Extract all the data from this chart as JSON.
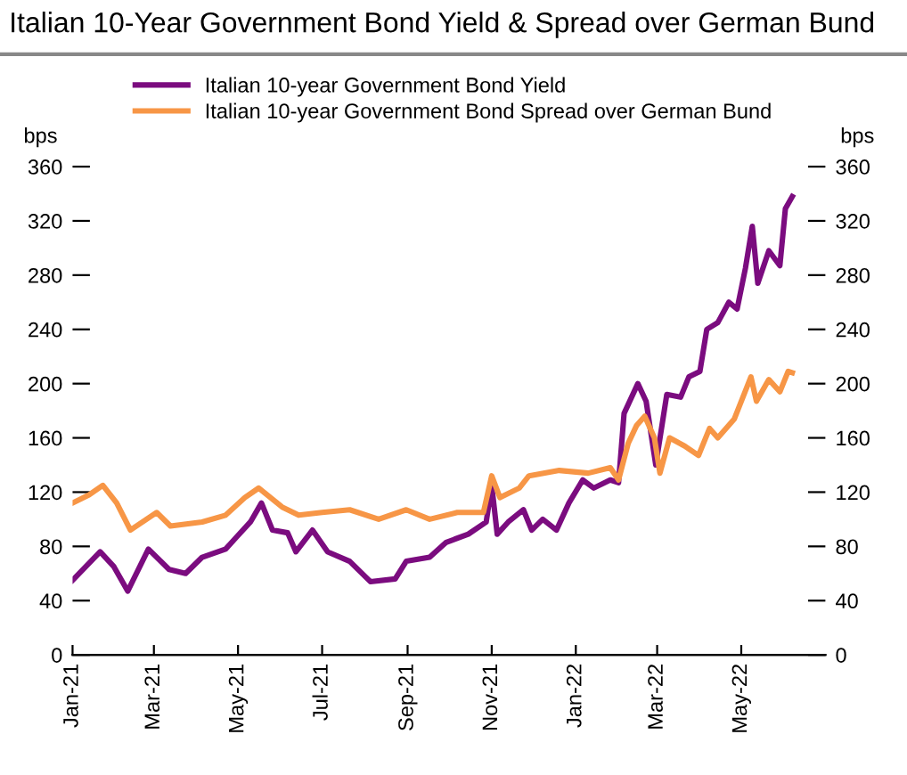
{
  "chart_data": {
    "type": "line",
    "title": "Italian 10-Year Government Bond Yield & Spread over German Bund",
    "ylabel": "bps",
    "y2label": "bps",
    "series": [
      {
        "name": "Italian 10-year Government Bond Yield",
        "color": "#7b0c7f",
        "x": [
          "2021-01-01",
          "2021-01-21",
          "2021-01-31",
          "2021-02-10",
          "2021-02-25",
          "2021-03-12",
          "2021-03-24",
          "2021-04-05",
          "2021-04-22",
          "2021-04-30",
          "2021-05-10",
          "2021-05-18",
          "2021-05-26",
          "2021-06-06",
          "2021-06-12",
          "2021-06-24",
          "2021-07-05",
          "2021-07-21",
          "2021-08-05",
          "2021-08-23",
          "2021-08-31",
          "2021-09-17",
          "2021-09-29",
          "2021-10-15",
          "2021-10-28",
          "2021-11-01",
          "2021-11-05",
          "2021-11-13",
          "2021-11-24",
          "2021-11-30",
          "2021-12-08",
          "2021-12-18",
          "2021-12-27",
          "2022-01-06",
          "2022-01-14",
          "2022-01-26",
          "2022-02-01",
          "2022-02-05",
          "2022-02-15",
          "2022-02-21",
          "2022-02-28",
          "2022-03-08",
          "2022-03-18",
          "2022-03-24",
          "2022-04-01",
          "2022-04-06",
          "2022-04-14",
          "2022-04-22",
          "2022-04-28",
          "2022-05-04",
          "2022-05-09",
          "2022-05-13",
          "2022-05-21",
          "2022-05-29",
          "2022-06-02",
          "2022-06-07"
        ],
        "values": [
          55,
          76,
          65,
          47,
          78,
          63,
          60,
          72,
          78,
          87,
          98,
          112,
          92,
          90,
          76,
          92,
          76,
          69,
          54,
          56,
          69,
          72,
          83,
          89,
          98,
          125,
          89,
          98,
          107,
          92,
          100,
          92,
          112,
          129,
          123,
          129,
          127,
          178,
          200,
          187,
          140,
          192,
          190,
          205,
          209,
          240,
          245,
          260,
          255,
          285,
          316,
          274,
          298,
          287,
          329,
          338
        ]
      },
      {
        "name": "Italian 10-year Government Bond Spread over German Bund",
        "color": "#f79646",
        "x": [
          "2021-01-01",
          "2021-01-13",
          "2021-01-23",
          "2021-02-02",
          "2021-02-12",
          "2021-03-03",
          "2021-03-13",
          "2021-04-05",
          "2021-04-22",
          "2021-05-06",
          "2021-05-16",
          "2021-06-02",
          "2021-06-14",
          "2021-07-01",
          "2021-07-21",
          "2021-08-11",
          "2021-08-31",
          "2021-09-17",
          "2021-10-07",
          "2021-10-26",
          "2021-11-01",
          "2021-11-07",
          "2021-11-21",
          "2021-11-28",
          "2021-12-20",
          "2022-01-10",
          "2022-01-26",
          "2022-02-01",
          "2022-02-08",
          "2022-02-14",
          "2022-02-20",
          "2022-02-27",
          "2022-03-03",
          "2022-03-10",
          "2022-03-21",
          "2022-03-31",
          "2022-04-08",
          "2022-04-14",
          "2022-04-26",
          "2022-05-08",
          "2022-05-12",
          "2022-05-21",
          "2022-05-29",
          "2022-06-04",
          "2022-06-07"
        ],
        "values": [
          112,
          118,
          125,
          112,
          92,
          105,
          95,
          98,
          103,
          116,
          123,
          109,
          103,
          105,
          107,
          100,
          107,
          100,
          105,
          105,
          132,
          116,
          123,
          132,
          136,
          134,
          138,
          129,
          156,
          169,
          176,
          160,
          134,
          160,
          154,
          147,
          167,
          160,
          174,
          205,
          187,
          203,
          194,
          209,
          208
        ]
      }
    ],
    "xlim": [
      "2021-01-01",
      "2022-07-01"
    ],
    "xticks": [
      {
        "value": "2021-01-01",
        "label": "Jan-21"
      },
      {
        "value": "2021-03-01",
        "label": "Mar-21"
      },
      {
        "value": "2021-05-01",
        "label": "May-21"
      },
      {
        "value": "2021-07-01",
        "label": "Jul-21"
      },
      {
        "value": "2021-09-01",
        "label": "Sep-21"
      },
      {
        "value": "2021-11-01",
        "label": "Nov-21"
      },
      {
        "value": "2022-01-01",
        "label": "Jan-22"
      },
      {
        "value": "2022-03-01",
        "label": "Mar-22"
      },
      {
        "value": "2022-05-01",
        "label": "May-22"
      }
    ],
    "ylim": [
      0,
      360
    ],
    "yticks": [
      0,
      40,
      80,
      120,
      160,
      200,
      240,
      280,
      320,
      360
    ],
    "y2lim": [
      0,
      360
    ],
    "y2ticks": [
      0,
      40,
      80,
      120,
      160,
      200,
      240,
      280,
      320,
      360
    ],
    "legend": "top",
    "grid": false,
    "marker": "none",
    "line_style": "solid"
  }
}
